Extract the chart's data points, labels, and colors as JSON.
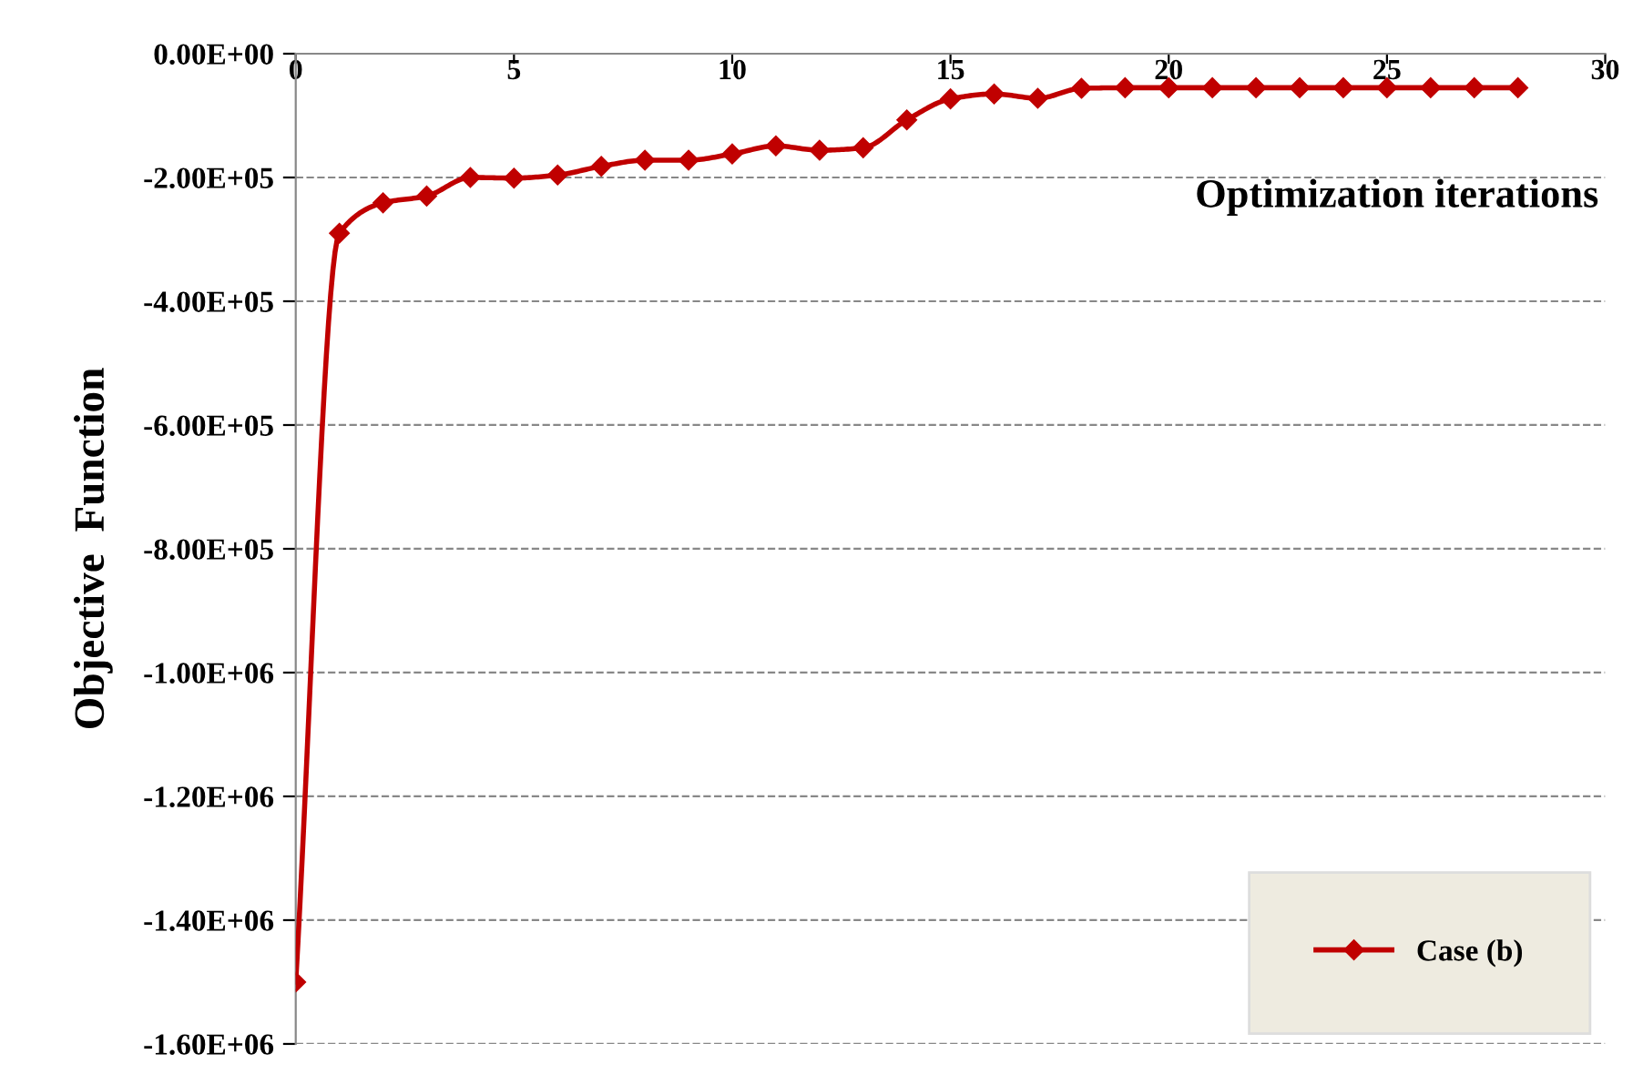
{
  "chart_data": {
    "type": "line",
    "xlabel": "Optimization iterations",
    "ylabel": "Objective  Function",
    "x": [
      0,
      1,
      2,
      3,
      4,
      5,
      6,
      7,
      8,
      9,
      10,
      11,
      12,
      13,
      14,
      15,
      16,
      17,
      18,
      19,
      20,
      21,
      22,
      23,
      24,
      25,
      26,
      27,
      28
    ],
    "series": [
      {
        "name": "Case (b)",
        "color": "#c00000",
        "values": [
          -1500000,
          -290000,
          -241000,
          -230000,
          -200000,
          -201000,
          -196000,
          -182000,
          -172000,
          -172000,
          -162000,
          -149000,
          -156000,
          -152000,
          -107000,
          -73000,
          -65000,
          -72000,
          -56000,
          -55000,
          -55000,
          -55000,
          -55000,
          -55000,
          -55000,
          -55000,
          -55000,
          -55000,
          -55000
        ]
      }
    ],
    "xlim": [
      0,
      30
    ],
    "xticks": [
      0,
      5,
      10,
      15,
      20,
      25,
      30
    ],
    "ylim": [
      -1600000,
      0
    ],
    "yticks": [
      {
        "value": 0,
        "label": "0.00E+00"
      },
      {
        "value": -200000,
        "label": "-2.00E+05"
      },
      {
        "value": -400000,
        "label": "-4.00E+05"
      },
      {
        "value": -600000,
        "label": "-6.00E+05"
      },
      {
        "value": -800000,
        "label": "-8.00E+05"
      },
      {
        "value": -1000000,
        "label": "-1.00E+06"
      },
      {
        "value": -1200000,
        "label": "-1.20E+06"
      },
      {
        "value": -1400000,
        "label": "-1.40E+06"
      },
      {
        "value": -1600000,
        "label": "-1.60E+06"
      }
    ],
    "grid": "y",
    "legend": "bottom right",
    "marker": "diamond",
    "line_style": "solid"
  }
}
